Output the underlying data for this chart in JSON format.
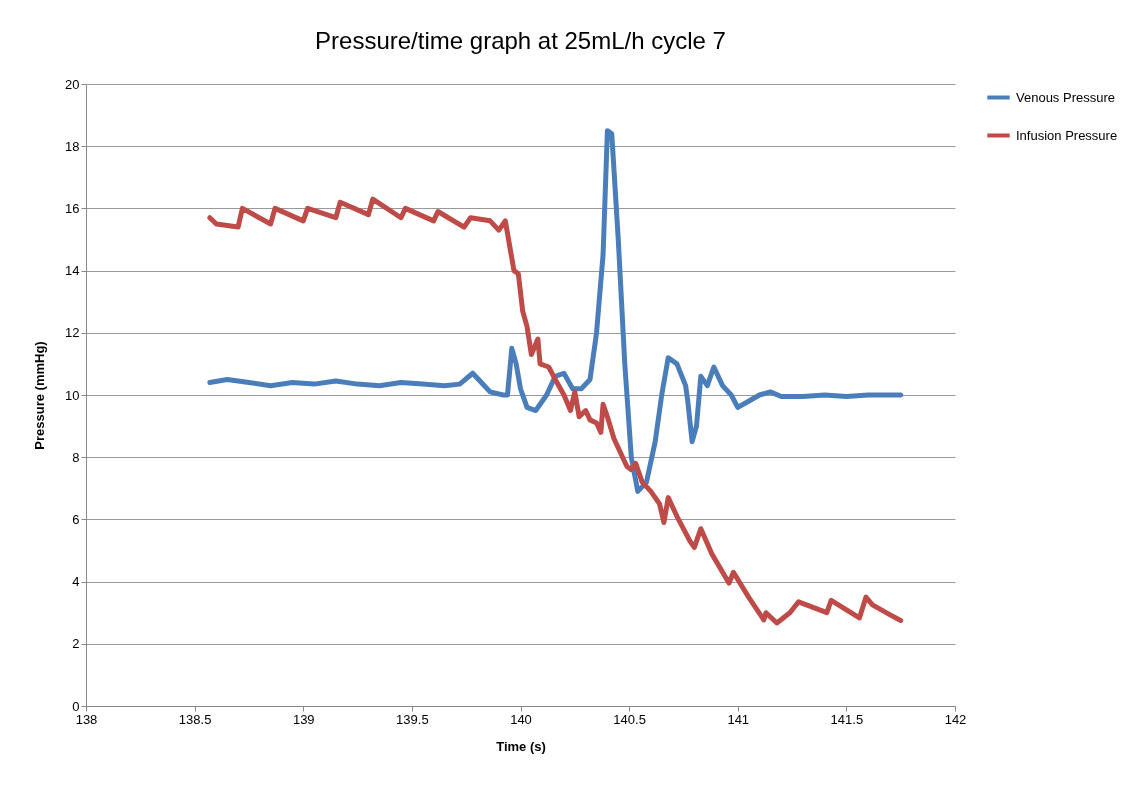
{
  "chart_data": {
    "type": "line",
    "title": "Pressure/time graph at 25mL/h cycle 7",
    "xlabel": "Time (s)",
    "ylabel": "Pressure (mmHg)",
    "xlim": [
      138,
      142
    ],
    "xticks": [
      138,
      138.5,
      139,
      139.5,
      140,
      140.5,
      141,
      141.5,
      142
    ],
    "ylim": [
      0,
      20
    ],
    "yticks": [
      0,
      2,
      4,
      6,
      8,
      10,
      12,
      14,
      16,
      18,
      20
    ],
    "grid": "y",
    "legend": "right",
    "marker": "none",
    "line_style": "solid",
    "series": [
      {
        "name": "Venous Pressure",
        "color": "#4a7ebb",
        "x": [
          138.57,
          138.65,
          138.75,
          138.85,
          138.95,
          139.05,
          139.15,
          139.25,
          139.35,
          139.45,
          139.55,
          139.65,
          139.72,
          139.78,
          139.82,
          139.86,
          139.92,
          139.94,
          139.96,
          139.98,
          140.0,
          140.03,
          140.07,
          140.12,
          140.16,
          140.2,
          140.24,
          140.28,
          140.32,
          140.35,
          140.38,
          140.4,
          140.42,
          140.45,
          140.48,
          140.51,
          140.54,
          140.58,
          140.62,
          140.65,
          140.68,
          140.72,
          140.76,
          140.77,
          140.79,
          140.81,
          140.83,
          140.86,
          140.89,
          140.93,
          140.97,
          141.0,
          141.05,
          141.1,
          141.15,
          141.2,
          141.3,
          141.4,
          141.5,
          141.6,
          141.75
        ],
        "values": [
          10.4,
          10.5,
          10.4,
          10.3,
          10.4,
          10.35,
          10.45,
          10.35,
          10.3,
          10.4,
          10.35,
          10.3,
          10.35,
          10.7,
          10.4,
          10.1,
          10.0,
          10.0,
          11.5,
          11.0,
          10.2,
          9.6,
          9.5,
          10.0,
          10.6,
          10.7,
          10.2,
          10.2,
          10.5,
          12.0,
          14.5,
          18.5,
          18.4,
          15.0,
          11.0,
          8.0,
          6.9,
          7.2,
          8.5,
          10.0,
          11.2,
          11.0,
          10.3,
          9.8,
          8.5,
          9.0,
          10.6,
          10.3,
          10.9,
          10.3,
          10.0,
          9.6,
          9.8,
          10.0,
          10.1,
          9.95,
          9.95,
          10.0,
          9.95,
          10.0,
          10.0
        ]
      },
      {
        "name": "Infusion Pressure",
        "color": "#be4b48",
        "x": [
          138.57,
          138.6,
          138.7,
          138.72,
          138.85,
          138.87,
          139.0,
          139.02,
          139.15,
          139.17,
          139.3,
          139.32,
          139.45,
          139.47,
          139.6,
          139.62,
          139.74,
          139.77,
          139.86,
          139.9,
          139.93,
          139.95,
          139.97,
          139.99,
          140.01,
          140.03,
          140.05,
          140.08,
          140.09,
          140.13,
          140.16,
          140.2,
          140.23,
          140.25,
          140.27,
          140.3,
          140.32,
          140.35,
          140.37,
          140.38,
          140.4,
          140.43,
          140.47,
          140.49,
          140.51,
          140.53,
          140.56,
          140.6,
          140.64,
          140.66,
          140.68,
          140.72,
          140.78,
          140.8,
          140.83,
          140.88,
          140.96,
          140.98,
          141.05,
          141.12,
          141.13,
          141.18,
          141.24,
          141.28,
          141.41,
          141.43,
          141.56,
          141.59,
          141.62,
          141.71,
          141.75
        ],
        "values": [
          15.7,
          15.5,
          15.4,
          16.0,
          15.5,
          16.0,
          15.6,
          16.0,
          15.7,
          16.2,
          15.8,
          16.3,
          15.7,
          16.0,
          15.6,
          15.9,
          15.4,
          15.7,
          15.6,
          15.3,
          15.6,
          14.8,
          14.0,
          13.9,
          12.7,
          12.2,
          11.3,
          11.8,
          11.0,
          10.9,
          10.5,
          10.0,
          9.5,
          10.1,
          9.3,
          9.5,
          9.2,
          9.1,
          8.8,
          9.7,
          9.3,
          8.6,
          8.0,
          7.7,
          7.6,
          7.8,
          7.2,
          6.9,
          6.5,
          5.9,
          6.7,
          6.1,
          5.3,
          5.1,
          5.7,
          4.9,
          3.95,
          4.3,
          3.5,
          2.77,
          3.0,
          2.67,
          3.0,
          3.35,
          3.0,
          3.4,
          2.83,
          3.5,
          3.25,
          2.9,
          2.75
        ]
      }
    ]
  }
}
